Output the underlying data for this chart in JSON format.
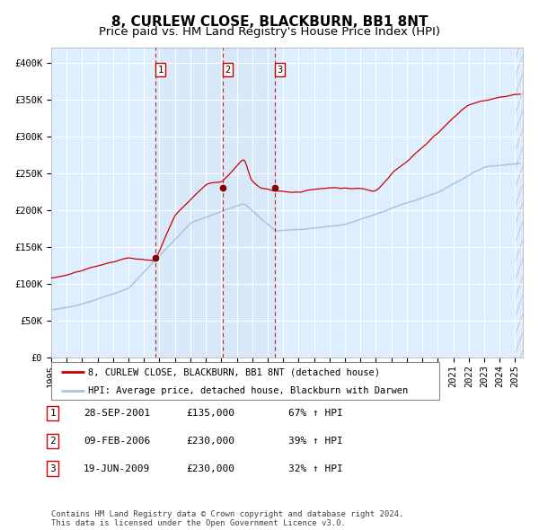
{
  "title": "8, CURLEW CLOSE, BLACKBURN, BB1 8NT",
  "subtitle": "Price paid vs. HM Land Registry's House Price Index (HPI)",
  "xlim_start": 1995.0,
  "xlim_end": 2025.5,
  "ylim": [
    0,
    420000
  ],
  "yticks": [
    0,
    50000,
    100000,
    150000,
    200000,
    250000,
    300000,
    350000,
    400000
  ],
  "ytick_labels": [
    "£0",
    "£50K",
    "£100K",
    "£150K",
    "£200K",
    "£250K",
    "£300K",
    "£350K",
    "£400K"
  ],
  "hpi_color": "#aac4e0",
  "price_color": "#cc0000",
  "dot_color": "#880000",
  "vline_color": "#cc0000",
  "bg_color": "#ddeeff",
  "grid_color": "#ffffff",
  "purchases": [
    {
      "date_num": 2001.74,
      "price": 135000,
      "label": "1"
    },
    {
      "date_num": 2006.1,
      "price": 230000,
      "label": "2"
    },
    {
      "date_num": 2009.46,
      "price": 230000,
      "label": "3"
    }
  ],
  "legend_entries": [
    "8, CURLEW CLOSE, BLACKBURN, BB1 8NT (detached house)",
    "HPI: Average price, detached house, Blackburn with Darwen"
  ],
  "table_rows": [
    {
      "num": "1",
      "date": "28-SEP-2001",
      "price": "£135,000",
      "hpi": "67% ↑ HPI"
    },
    {
      "num": "2",
      "date": "09-FEB-2006",
      "price": "£230,000",
      "hpi": "39% ↑ HPI"
    },
    {
      "num": "3",
      "date": "19-JUN-2009",
      "price": "£230,000",
      "hpi": "32% ↑ HPI"
    }
  ],
  "footnote": "Contains HM Land Registry data © Crown copyright and database right 2024.\nThis data is licensed under the Open Government Licence v3.0.",
  "title_fontsize": 11,
  "subtitle_fontsize": 9.5,
  "tick_fontsize": 7.5,
  "legend_fontsize": 7.5,
  "table_fontsize": 8,
  "footnote_fontsize": 6.5
}
